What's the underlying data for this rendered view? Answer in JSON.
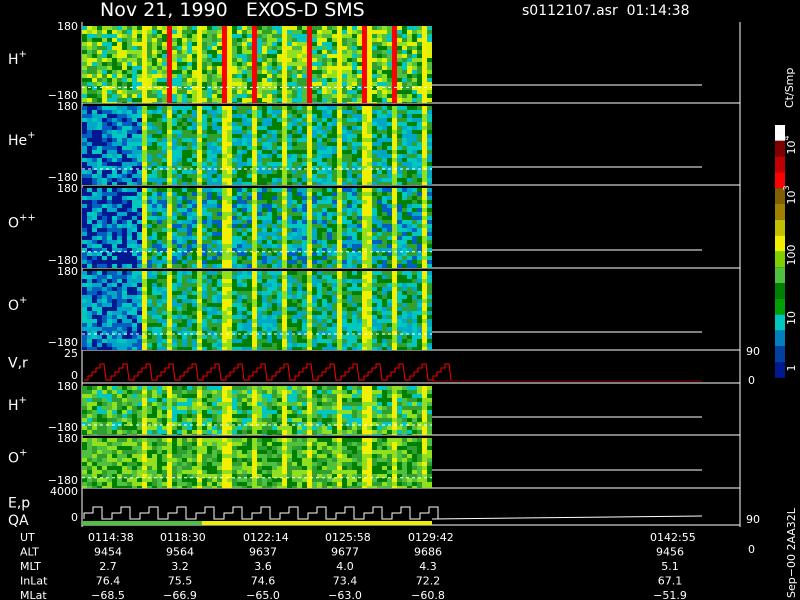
{
  "header": {
    "title": "Nov 21, 1990   EXOS-D SMS",
    "file_time": "s0112107.asr  01:14:38"
  },
  "panels": [
    {
      "label": "H",
      "sup": "+",
      "top_tick": "180",
      "bottom_tick": "−180"
    },
    {
      "label": "He",
      "sup": "+",
      "top_tick": "180",
      "bottom_tick": "−180"
    },
    {
      "label": "O",
      "sup": "++",
      "top_tick": "180",
      "bottom_tick": "−180"
    },
    {
      "label": "O",
      "sup": "+",
      "top_tick": "180",
      "bottom_tick": "−180"
    },
    {
      "label": "V,r",
      "sup": "",
      "top_tick": "25",
      "bottom_tick": "0",
      "right_top": "90",
      "right_bottom": "0"
    },
    {
      "label": "H",
      "sup": "+",
      "top_tick": "180",
      "bottom_tick": "−180"
    },
    {
      "label": "O",
      "sup": "+",
      "top_tick": "180",
      "bottom_tick": "−180"
    },
    {
      "label": "E,p",
      "sup": "",
      "label2": "QA",
      "top_tick": "4000",
      "bottom_tick": "0",
      "right_top": "90",
      "right_bottom": "0"
    }
  ],
  "colorbar": {
    "unit": "Ct/Smp",
    "labels": [
      {
        "base": "10",
        "sup": "4"
      },
      {
        "base": "10",
        "sup": "3"
      },
      {
        "base": "100",
        "sup": ""
      },
      {
        "base": "10",
        "sup": ""
      },
      {
        "base": "1",
        "sup": ""
      }
    ]
  },
  "footer_id": "Sep−00  2AA32L",
  "table": {
    "row_labels": [
      "UT",
      "ALT",
      "MLT",
      "InLat",
      "MLat"
    ],
    "rows": [
      [
        "0114:38",
        "0118:30",
        "0122:14",
        "0125:58",
        "0129:42",
        "0142:55"
      ],
      [
        "9454",
        "9564",
        "9637",
        "9677",
        "9686",
        "9456"
      ],
      [
        "2.7",
        "3.2",
        "3.6",
        "4.0",
        "4.3",
        "5.1"
      ],
      [
        "76.4",
        "75.5",
        "74.6",
        "73.4",
        "72.2",
        "67.1"
      ],
      [
        "−68.5",
        "−66.9",
        "−65.0",
        "−63.0",
        "−60.8",
        "−51.9"
      ]
    ]
  }
}
